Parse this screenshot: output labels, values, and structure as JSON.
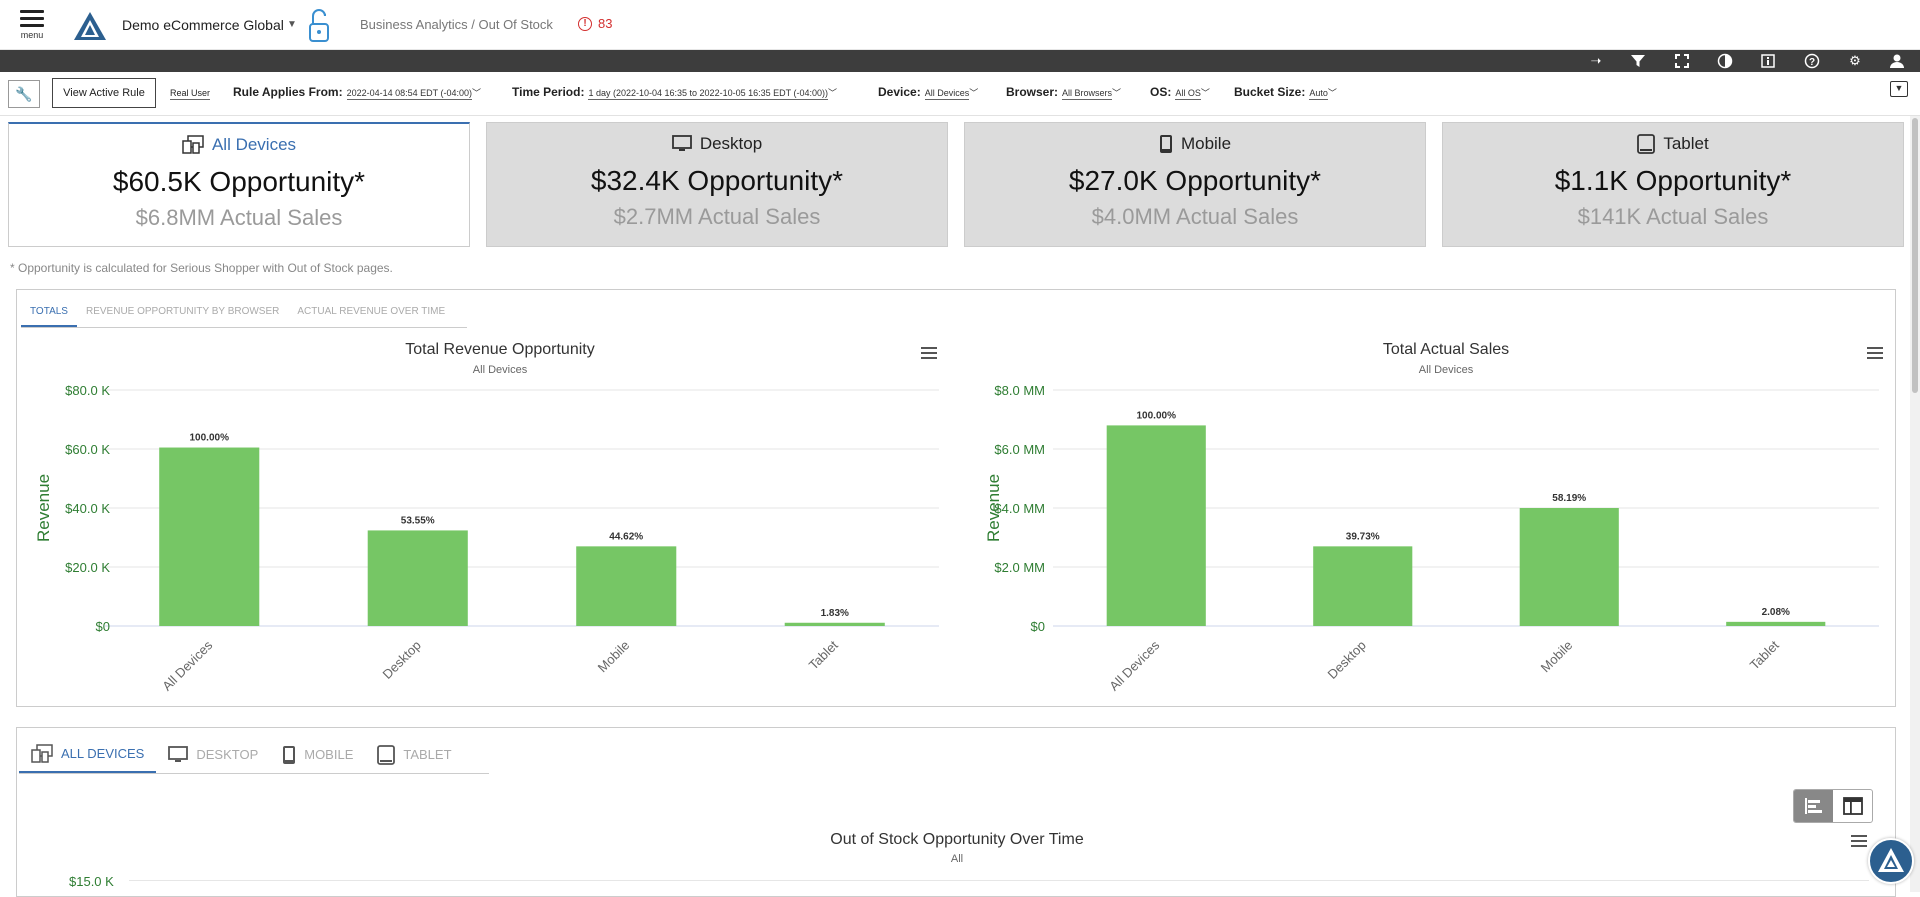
{
  "header": {
    "menu_label": "menu",
    "company": "Demo eCommerce Global",
    "breadcrumb": "Business Analytics / Out Of Stock",
    "alert_count": "83"
  },
  "toolbar_icons": [
    "pin-icon",
    "filter-icon",
    "fullscreen-icon",
    "contrast-icon",
    "info-icon",
    "help-icon",
    "settings-icon",
    "user-icon"
  ],
  "filters": {
    "view_active_rule": "View Active Rule",
    "real_user": "Real User",
    "rule_applies_label": "Rule Applies From:",
    "rule_applies_value": "2022-04-14 08:54 EDT (-04:00)",
    "time_period_label": "Time Period:",
    "time_period_value": "1 day (2022-10-04 16:35 to 2022-10-05 16:35 EDT (-04:00))",
    "device_label": "Device:",
    "device_value": "All Devices",
    "browser_label": "Browser:",
    "browser_value": "All Browsers",
    "os_label": "OS:",
    "os_value": "All OS",
    "bucket_label": "Bucket Size:",
    "bucket_value": "Auto"
  },
  "cards": [
    {
      "name": "All Devices",
      "opportunity": "$60.5K Opportunity*",
      "sales": "$6.8MM Actual Sales"
    },
    {
      "name": "Desktop",
      "opportunity": "$32.4K Opportunity*",
      "sales": "$2.7MM Actual Sales"
    },
    {
      "name": "Mobile",
      "opportunity": "$27.0K Opportunity*",
      "sales": "$4.0MM Actual Sales"
    },
    {
      "name": "Tablet",
      "opportunity": "$1.1K Opportunity*",
      "sales": "$141K Actual Sales"
    }
  ],
  "footnote": "* Opportunity is calculated for Serious Shopper with Out of Stock pages.",
  "chart_tabs": [
    "TOTALS",
    "REVENUE OPPORTUNITY BY BROWSER",
    "ACTUAL REVENUE OVER TIME"
  ],
  "colors": {
    "bar": "#76c665",
    "axis_label": "#2e7d32",
    "accent": "#3a6fb0"
  },
  "chart_data": [
    {
      "type": "bar",
      "title": "Total Revenue Opportunity",
      "subtitle": "All Devices",
      "ylabel": "Revenue",
      "categories": [
        "All Devices",
        "Desktop",
        "Mobile",
        "Tablet"
      ],
      "values": [
        60.5,
        32.4,
        27.0,
        1.1
      ],
      "data_labels": [
        "100.00%",
        "53.55%",
        "44.62%",
        "1.83%"
      ],
      "ylim": [
        0,
        80
      ],
      "yticks": [
        0,
        20,
        40,
        60,
        80
      ],
      "ytick_labels": [
        "$0",
        "$20.0 K",
        "$40.0 K",
        "$60.0 K",
        "$80.0 K"
      ]
    },
    {
      "type": "bar",
      "title": "Total Actual Sales",
      "subtitle": "All Devices",
      "ylabel": "Revenue",
      "categories": [
        "All Devices",
        "Desktop",
        "Mobile",
        "Tablet"
      ],
      "values": [
        6.8,
        2.7,
        4.0,
        0.141
      ],
      "data_labels": [
        "100.00%",
        "39.73%",
        "58.19%",
        "2.08%"
      ],
      "ylim": [
        0,
        8
      ],
      "yticks": [
        0,
        2,
        4,
        6,
        8
      ],
      "ytick_labels": [
        "$0",
        "$2.0 MM",
        "$4.0 MM",
        "$6.0 MM",
        "$8.0 MM"
      ]
    }
  ],
  "device_tabs": [
    "ALL DEVICES",
    "DESKTOP",
    "MOBILE",
    "TABLET"
  ],
  "bottom_chart": {
    "title": "Out of Stock Opportunity Over Time",
    "subtitle": "All",
    "top_tick": "$15.0 K"
  }
}
